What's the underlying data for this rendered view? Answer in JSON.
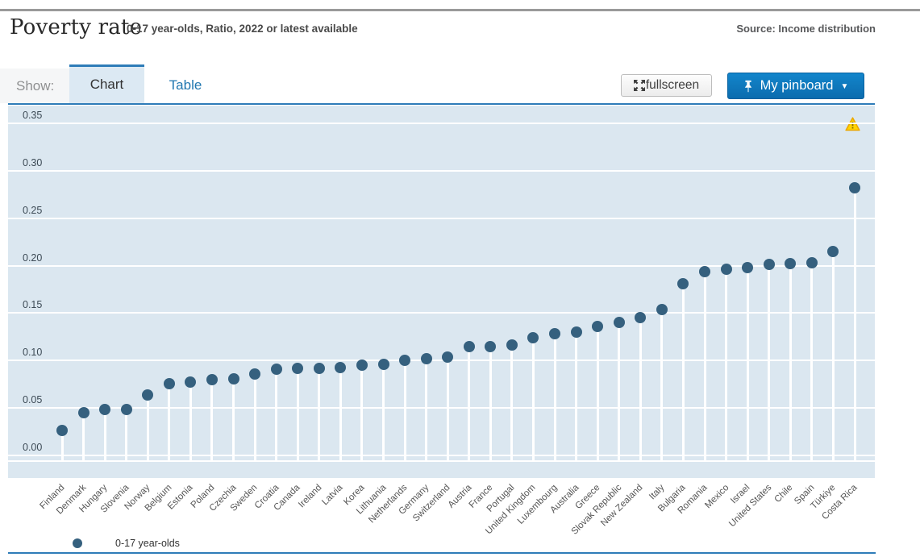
{
  "header": {
    "title": "Poverty rate",
    "subtitle": "0-17 year-olds, Ratio, 2022 or latest available",
    "source": "Source: Income distribution"
  },
  "toolbar": {
    "show_label": "Show:",
    "tab_chart": "Chart",
    "tab_table": "Table",
    "fullscreen_label": "fullscreen",
    "pinboard_label": "My pinboard",
    "pinboard_caret": "▼"
  },
  "legend": {
    "label": "0-17 year-olds"
  },
  "colors": {
    "accent_blue": "#2e7cb8",
    "pinboard_blue": "#0e76bb",
    "plot_background": "#dbe7f0",
    "dot": "#35607e",
    "warning_yellow": "#ffd400"
  },
  "chart_data": {
    "type": "scatter",
    "title": "Poverty rate",
    "subtitle": "0-17 year-olds, Ratio, 2022 or latest available",
    "series_name": "0-17 year-olds",
    "ylabel": "",
    "xlabel": "",
    "ylim": [
      0,
      0.35
    ],
    "yticks": [
      0,
      0.05,
      0.1,
      0.15,
      0.2,
      0.25,
      0.3,
      0.35
    ],
    "grid": true,
    "legend_position": "bottom-left",
    "has_warning_flag": true,
    "categories": [
      "Finland",
      "Denmark",
      "Hungary",
      "Slovenia",
      "Norway",
      "Belgium",
      "Estonia",
      "Poland",
      "Czechia",
      "Sweden",
      "Croatia",
      "Canada",
      "Ireland",
      "Latvia",
      "Korea",
      "Lithuania",
      "Netherlands",
      "Germany",
      "Switzerland",
      "Austria",
      "France",
      "Portugal",
      "United Kingdom",
      "Luxembourg",
      "Australia",
      "Greece",
      "Slovak Republic",
      "New Zealand",
      "Italy",
      "Bulgaria",
      "Romania",
      "Mexico",
      "Israel",
      "United States",
      "Chile",
      "Spain",
      "Türkiye",
      "Costa Rica"
    ],
    "values": [
      0.026,
      0.045,
      0.048,
      0.048,
      0.064,
      0.076,
      0.077,
      0.08,
      0.081,
      0.086,
      0.091,
      0.092,
      0.092,
      0.093,
      0.095,
      0.096,
      0.1,
      0.102,
      0.104,
      0.115,
      0.115,
      0.116,
      0.124,
      0.128,
      0.13,
      0.136,
      0.14,
      0.145,
      0.154,
      0.181,
      0.194,
      0.196,
      0.198,
      0.201,
      0.202,
      0.203,
      0.215,
      0.282
    ]
  }
}
